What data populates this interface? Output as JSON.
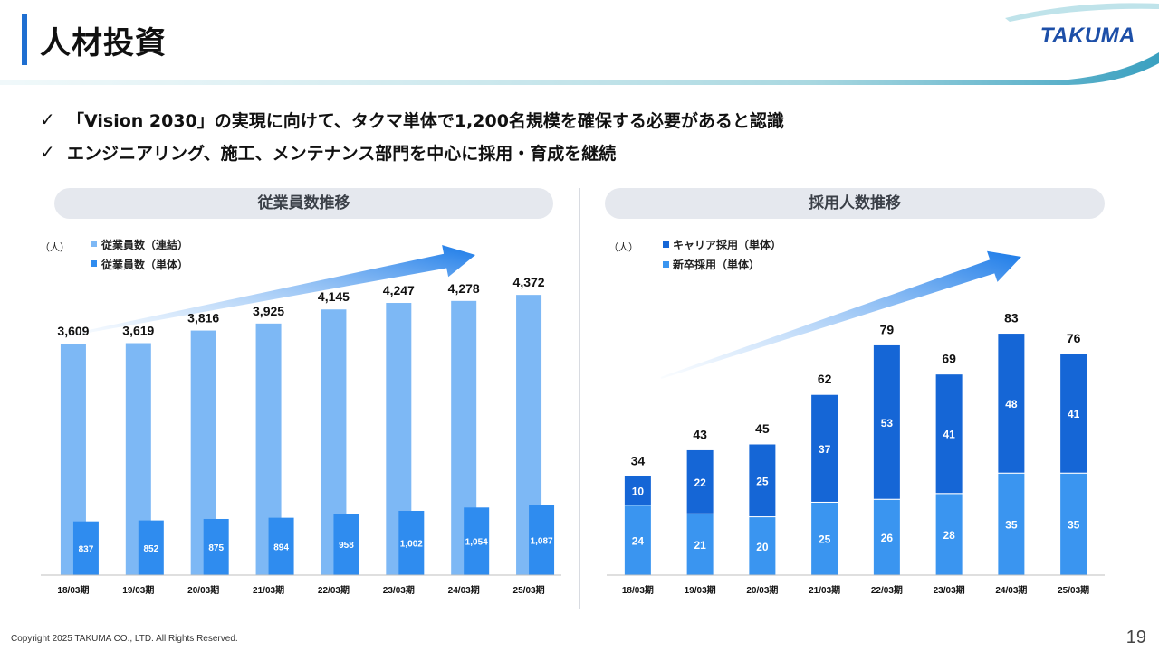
{
  "header": {
    "title": "人材投資",
    "logo": "TAKUMA"
  },
  "bullets": [
    {
      "check": "✓",
      "text": "「Vision 2030」の実現に向けて、タクマ単体で1,200名規模を確保する必要があると認識"
    },
    {
      "check": "✓",
      "text": "エンジニアリング、施工、メンテナンス部門を中心に採用・育成を継続"
    }
  ],
  "left_panel": {
    "title": "従業員数推移"
  },
  "right_panel": {
    "title": "採用人数推移"
  },
  "footer": {
    "copyright": "Copyright  2025 TAKUMA CO., LTD.  All Rights Reserved.",
    "page": "19"
  },
  "colors": {
    "accent": "#1f6fd1",
    "light_bar": "#7db8f5",
    "mid_bar": "#2f8cef",
    "dark_bar": "#1566d6",
    "new_grad": "#3a95f0"
  },
  "chart_data": [
    {
      "type": "bar",
      "unit": "（人）",
      "categories": [
        "18/03期",
        "19/03期",
        "20/03期",
        "21/03期",
        "22/03期",
        "23/03期",
        "24/03期",
        "25/03期"
      ],
      "series": [
        {
          "name": "従業員数（連結）",
          "values": [
            3609,
            3619,
            3816,
            3925,
            4145,
            4247,
            4278,
            4372
          ],
          "labels": [
            "3,609",
            "3,619",
            "3,816",
            "3,925",
            "4,145",
            "4,247",
            "4,278",
            "4,372"
          ]
        },
        {
          "name": "従業員数（単体）",
          "values": [
            837,
            852,
            875,
            894,
            958,
            1002,
            1054,
            1087
          ],
          "labels": [
            "837",
            "852",
            "875",
            "894",
            "958",
            "1,002",
            "1,054",
            "1,087"
          ]
        }
      ],
      "ylim": [
        0,
        4600
      ],
      "grid": false,
      "legend": "top-left"
    },
    {
      "type": "bar",
      "stacked": true,
      "unit": "（人）",
      "categories": [
        "18/03期",
        "19/03期",
        "20/03期",
        "21/03期",
        "22/03期",
        "23/03期",
        "24/03期",
        "25/03期"
      ],
      "series": [
        {
          "name": "新卒採用（単体）",
          "values": [
            24,
            21,
            20,
            25,
            26,
            28,
            35,
            35
          ]
        },
        {
          "name": "キャリア採用（単体）",
          "values": [
            10,
            22,
            25,
            37,
            53,
            41,
            48,
            41
          ]
        }
      ],
      "totals": [
        34,
        43,
        45,
        62,
        79,
        69,
        83,
        76
      ],
      "ylim": [
        0,
        90
      ],
      "grid": false,
      "legend": "top-left"
    }
  ]
}
